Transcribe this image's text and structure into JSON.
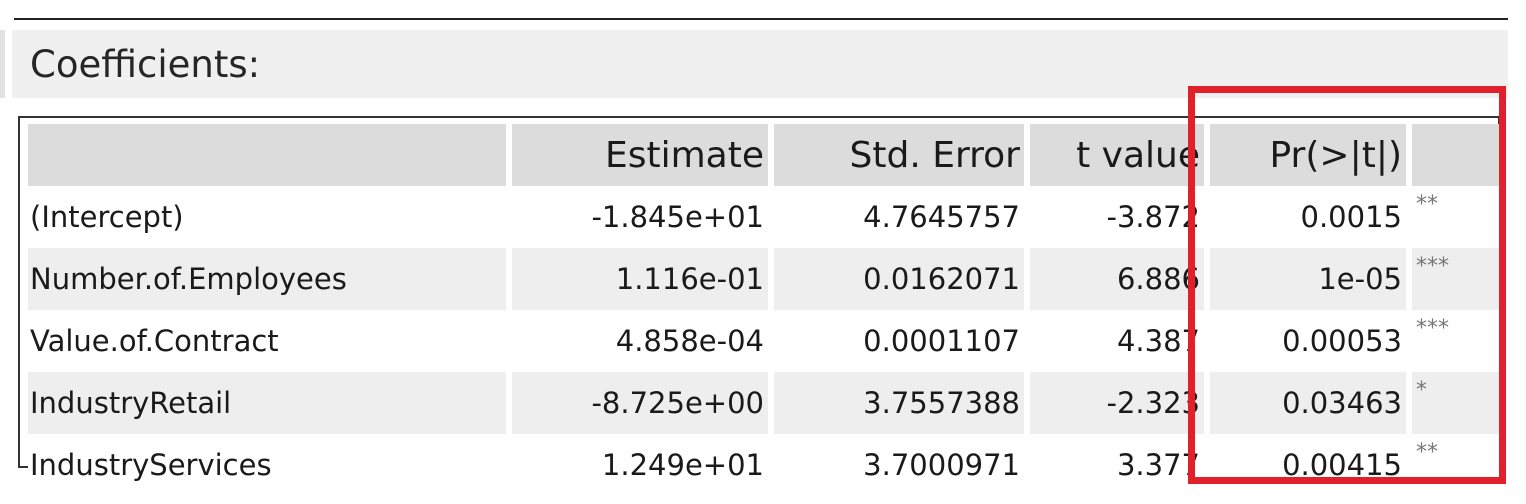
{
  "section": {
    "title": "Coefficients:"
  },
  "table": {
    "headers": [
      "",
      "Estimate",
      "Std. Error",
      "t value",
      "Pr(>|t|)",
      ""
    ],
    "rows": [
      {
        "name": "(Intercept)",
        "estimate": "-1.845e+01",
        "std_error": "4.7645757",
        "t_value": "-3.872",
        "p_value": "0.0015",
        "signif": "**"
      },
      {
        "name": "Number.of.Employees",
        "estimate": "1.116e-01",
        "std_error": "0.0162071",
        "t_value": "6.886",
        "p_value": "1e-05",
        "signif": "***"
      },
      {
        "name": "Value.of.Contract",
        "estimate": "4.858e-04",
        "std_error": "0.0001107",
        "t_value": "4.387",
        "p_value": "0.00053",
        "signif": "***"
      },
      {
        "name": "IndustryRetail",
        "estimate": "-8.725e+00",
        "std_error": "3.7557388",
        "t_value": "-2.323",
        "p_value": "0.03463",
        "signif": "*"
      },
      {
        "name": "IndustryServices",
        "estimate": "1.249e+01",
        "std_error": "3.7000971",
        "t_value": "3.377",
        "p_value": "0.00415",
        "signif": "**"
      }
    ]
  },
  "colors": {
    "highlight": "#e0202b",
    "header_bg": "#dcdcdc",
    "stripe_bg": "#eeeeee",
    "section_bg": "#f0f0f0"
  }
}
